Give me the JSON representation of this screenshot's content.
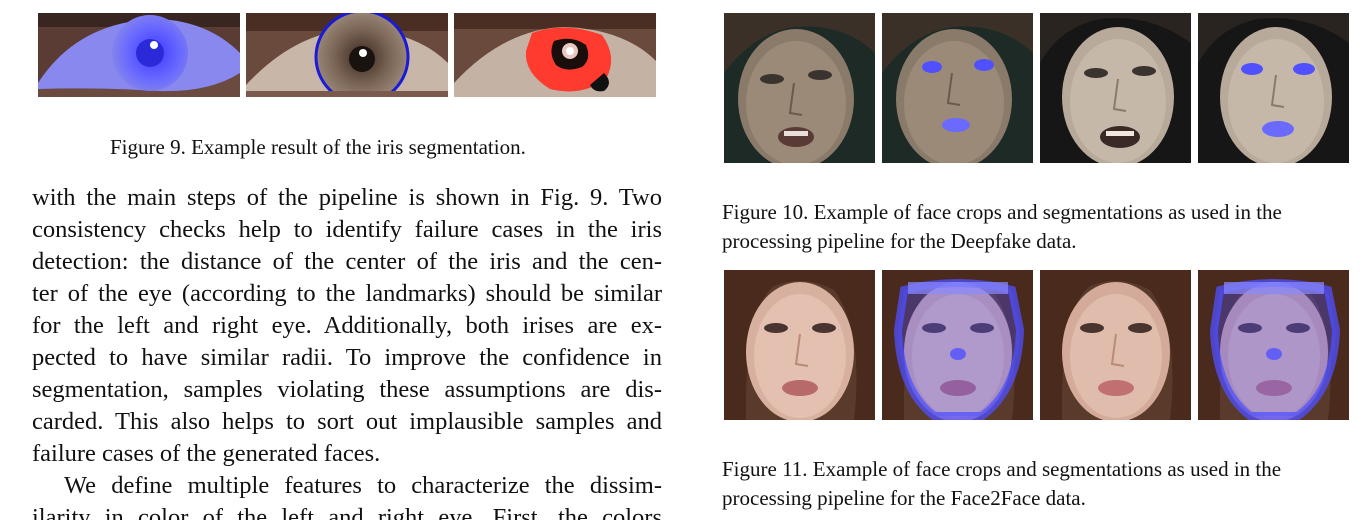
{
  "figure9": {
    "caption": "Figure 9. Example result of the iris segmentation.",
    "panels": [
      "iris-overlay",
      "iris-circle",
      "iris-mask"
    ]
  },
  "figure10": {
    "caption_line1": "Figure 10. Example of face crops and segmentations as used in the",
    "caption_line2": "processing pipeline for the Deepfake data."
  },
  "figure11": {
    "caption_line1": "Figure 11. Example of face crops and segmentations as used in the",
    "caption_line2": "processing pipeline for the Face2Face data."
  },
  "body": {
    "lines": [
      "with the main steps of the pipeline is shown in Fig. 9. Two",
      "consistency checks help to identify failure cases in the iris",
      "detection: the distance of the center of the iris and the cen-",
      "ter of the eye (according to the landmarks) should be similar",
      "for the left and right eye. Additionally, both irises are ex-",
      "pected to have similar radii. To improve the confidence in",
      "segmentation, samples violating these assumptions are dis-",
      "carded. This also helps to sort out implausible samples and",
      "failure cases of the generated faces.",
      "We define multiple features to characterize the dissim-",
      "ilarity in color of the left and right eye. First, the colors"
    ]
  },
  "colors": {
    "segmentation_blue": "#5050ff",
    "mask_red": "#ff3b2f"
  }
}
